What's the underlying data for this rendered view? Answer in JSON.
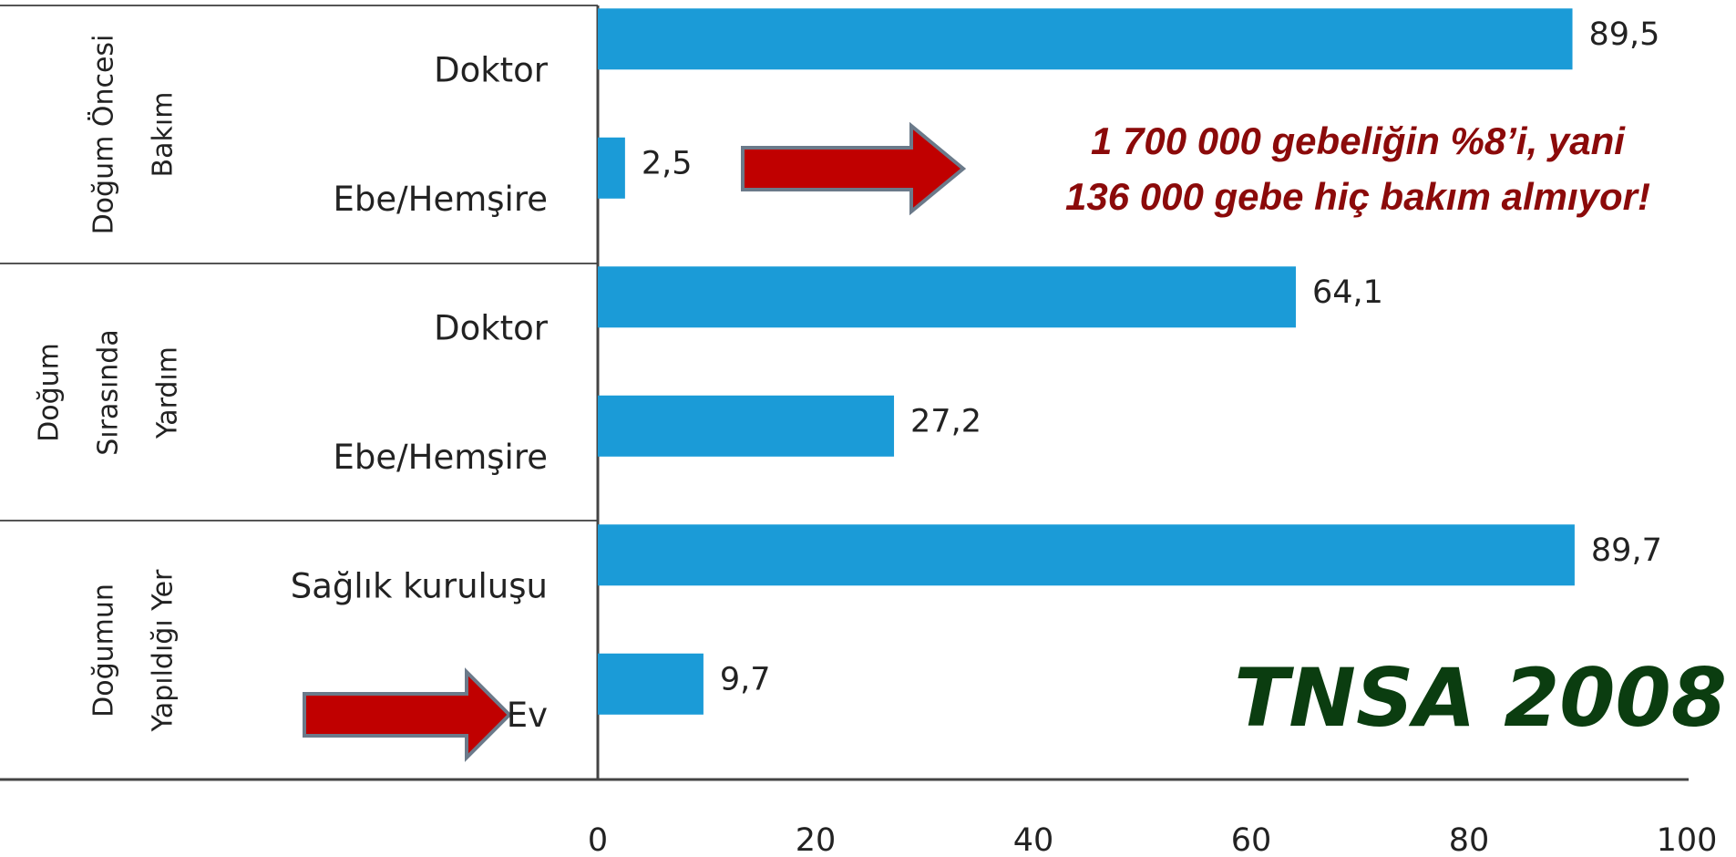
{
  "chart_data": {
    "type": "bar",
    "orientation": "horizontal",
    "color": "#1b9bd7",
    "groups": [
      {
        "label": [
          "Doğum Öncesi",
          "Bakım"
        ],
        "categories": [
          "Doktor",
          "Ebe/Hemşire"
        ],
        "values": [
          89.5,
          2.5
        ],
        "value_labels": [
          "89,5",
          "2,5"
        ]
      },
      {
        "label": [
          "Doğum",
          "Sırasında",
          "Yardım"
        ],
        "categories": [
          "Doktor",
          "Ebe/Hemşire"
        ],
        "values": [
          64.1,
          27.2
        ],
        "value_labels": [
          "64,1",
          "27,2"
        ]
      },
      {
        "label": [
          "Doğumun",
          "Yapıldığı Yer"
        ],
        "categories": [
          "Sağlık kuruluşu",
          "Ev"
        ],
        "values": [
          89.7,
          9.7
        ],
        "value_labels": [
          "89,7",
          "9,7"
        ]
      }
    ],
    "xlim": [
      0,
      100
    ],
    "xticks": [
      0,
      20,
      40,
      60,
      80,
      100
    ],
    "annotations": [
      "1 700 000 gebeliğin %8’i, yani",
      "136 000 gebe hiç bakım almıyor!"
    ],
    "source": "TNSA 2008"
  }
}
